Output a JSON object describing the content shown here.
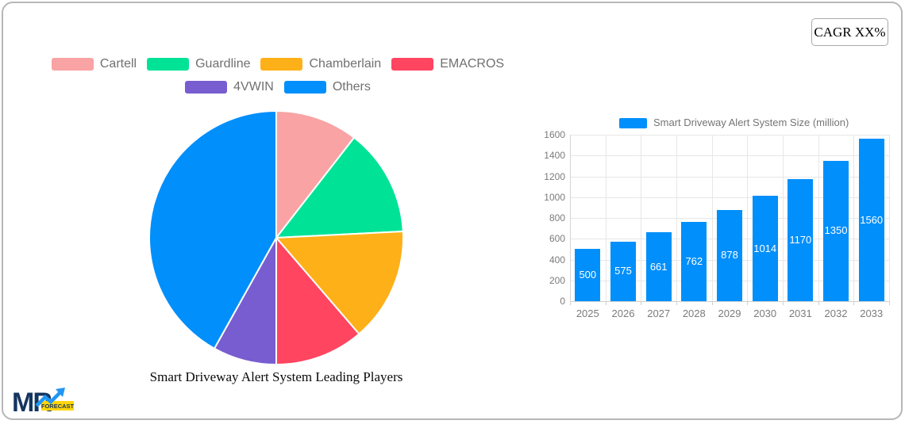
{
  "cagr": {
    "label": "CAGR XX%"
  },
  "pie_title": "Smart Driveway Alert System Leading Players",
  "bar_legend": {
    "label": "Smart Driveway Alert System Size (million)",
    "color": "#008FFB"
  },
  "logo": {
    "text": "MR",
    "badge": "FORECAST",
    "navy": "#14355F",
    "blue": "#2196F3",
    "yellow": "#FFD60A"
  },
  "chart_data": [
    {
      "type": "pie",
      "title": "Smart Driveway Alert System Leading Players",
      "labels": [
        "Cartell",
        "Guardline",
        "Chamberlain",
        "EMACROS",
        "4VWIN",
        "Others"
      ],
      "values_percent": [
        10.5,
        13.7,
        14.5,
        11.3,
        8.1,
        41.9
      ],
      "colors": [
        "#F9A3A4",
        "#00E396",
        "#FEB019",
        "#FF4560",
        "#775DD0",
        "#008FFB"
      ],
      "start_angle_deg": 0,
      "direction": "clockwise",
      "legend_position": "top",
      "slice_gap_color": "#ffffff"
    },
    {
      "type": "bar",
      "categories": [
        "2025",
        "2026",
        "2027",
        "2028",
        "2029",
        "2030",
        "2031",
        "2032",
        "2033"
      ],
      "series": [
        {
          "name": "Smart Driveway Alert System Size (million)",
          "values": [
            500,
            575,
            661,
            762,
            878,
            1014,
            1170,
            1350,
            1560
          ]
        }
      ],
      "bar_color": "#008FFB",
      "ylim": [
        0,
        1600
      ],
      "yticks": [
        0,
        200,
        400,
        600,
        800,
        1000,
        1200,
        1400,
        1600
      ],
      "grid": "both",
      "value_labels": "inside-center-white",
      "legend_position": "top"
    }
  ]
}
